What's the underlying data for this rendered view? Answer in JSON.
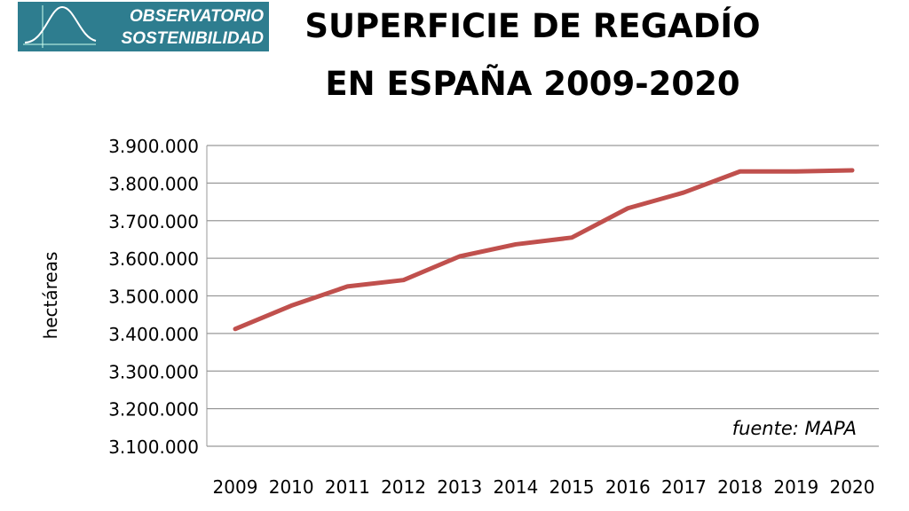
{
  "logo": {
    "line1": "OBSERVATORIO",
    "line2": "SOSTENIBILIDAD",
    "color": "#2e7d8f"
  },
  "chart_data": {
    "type": "line",
    "title": [
      "SUPERFICIE DE REGADÍO",
      "EN ESPAÑA 2009-2020"
    ],
    "ylabel": "hectáreas",
    "xlabel": "",
    "categories": [
      "2009",
      "2010",
      "2011",
      "2012",
      "2013",
      "2014",
      "2015",
      "2016",
      "2017",
      "2018",
      "2019",
      "2020"
    ],
    "series": [
      {
        "values": [
          3412000,
          3474000,
          3525000,
          3542000,
          3605000,
          3637000,
          3655000,
          3733000,
          3775000,
          3831000,
          3831000,
          3834000
        ],
        "color": "#c0504d"
      }
    ],
    "ylim": [
      3100000,
      3900000
    ],
    "yticks": [
      3100000,
      3200000,
      3300000,
      3400000,
      3500000,
      3600000,
      3700000,
      3800000,
      3900000
    ],
    "ytick_labels": [
      "3.100.000",
      "3.200.000",
      "3.300.000",
      "3.400.000",
      "3.500.000",
      "3.600.000",
      "3.700.000",
      "3.800.000",
      "3.900.000"
    ],
    "grid": true,
    "annotation": "fuente: MAPA"
  }
}
